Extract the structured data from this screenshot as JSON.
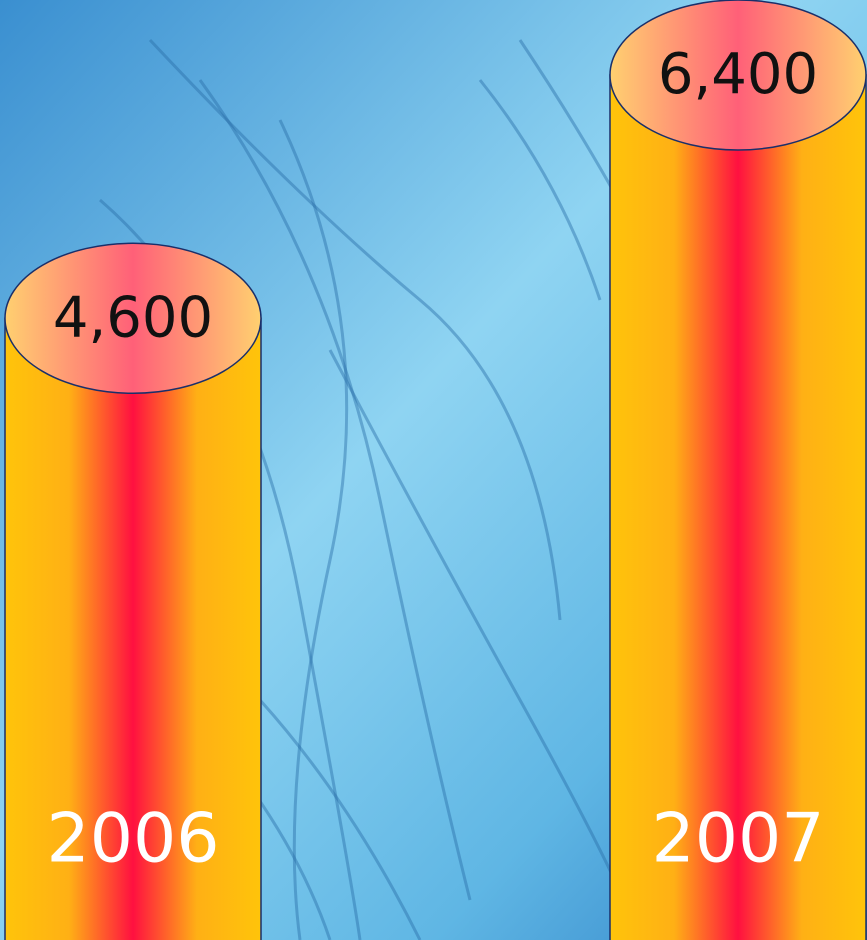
{
  "chart_data": {
    "type": "cylinder",
    "categories": [
      "2006",
      "2007"
    ],
    "values": [
      4600,
      6400
    ],
    "value_labels": [
      "4,600",
      "6,400"
    ]
  }
}
